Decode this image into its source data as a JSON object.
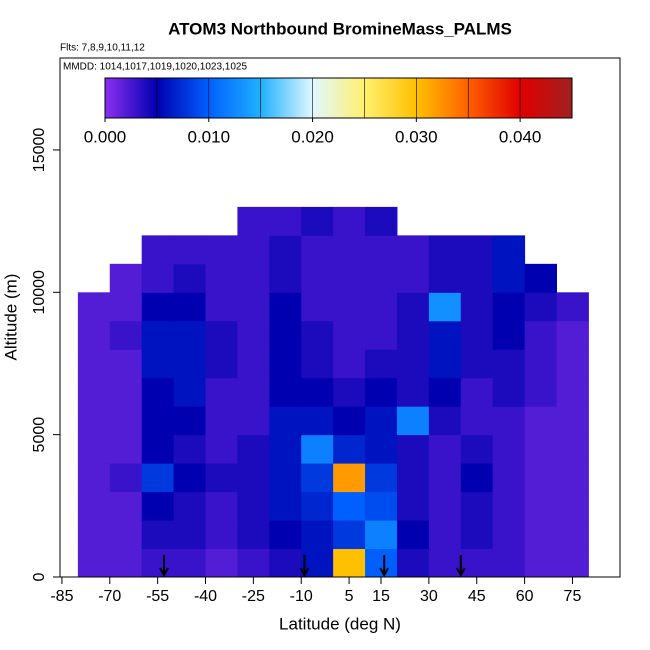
{
  "chart_data": {
    "type": "heatmap",
    "title": "ATOM3 Northbound BromineMass_PALMS",
    "subtitle": "Flts: 7,8,9,10,11,12",
    "annotation": "MMDD: 1014,1017,1019,1020,1023,1025",
    "x_label": "Latitude (deg N)",
    "y_label": "Altitude (m)",
    "xlim": [
      -85.6,
      89.9
    ],
    "ylim": [
      0,
      18230
    ],
    "xticks": [
      -85,
      -70,
      -55,
      -40,
      -25,
      -10,
      5,
      15,
      30,
      45,
      60,
      75
    ],
    "yticks": [
      0,
      5000,
      10000,
      15000
    ],
    "x_edges": [
      -80,
      -70,
      -60,
      -50,
      -40,
      -30,
      -20,
      -10,
      0,
      10,
      20,
      30,
      40,
      50,
      60,
      70,
      80
    ],
    "y_edges": [
      0,
      1000,
      2000,
      3000,
      4000,
      5000,
      6000,
      7000,
      8000,
      9000,
      10000,
      11000,
      12000,
      13000
    ],
    "values": [
      [
        0.002,
        0.002,
        0.003,
        0.003,
        0.002,
        0.003,
        0.004,
        0.006,
        0.03,
        0.01,
        0.004,
        0.003,
        0.003,
        0.003,
        0.002,
        0.002
      ],
      [
        0.002,
        0.002,
        0.004,
        0.004,
        0.003,
        0.004,
        0.005,
        0.006,
        0.008,
        0.012,
        0.005,
        0.003,
        0.004,
        0.003,
        0.002,
        0.002
      ],
      [
        0.002,
        0.002,
        0.005,
        0.004,
        0.003,
        0.004,
        0.006,
        0.007,
        0.01,
        0.009,
        0.004,
        0.003,
        0.004,
        0.003,
        0.002,
        0.002
      ],
      [
        0.002,
        0.003,
        0.008,
        0.005,
        0.004,
        0.004,
        0.006,
        0.008,
        0.032,
        0.008,
        0.004,
        0.003,
        0.005,
        0.003,
        0.002,
        0.002
      ],
      [
        0.002,
        0.002,
        0.005,
        0.004,
        0.003,
        0.004,
        0.006,
        0.012,
        0.007,
        0.006,
        0.004,
        0.003,
        0.004,
        0.003,
        0.002,
        0.002
      ],
      [
        0.002,
        0.002,
        0.005,
        0.005,
        0.003,
        0.003,
        0.006,
        0.006,
        0.005,
        0.006,
        0.012,
        0.004,
        0.003,
        0.003,
        0.002,
        0.002
      ],
      [
        0.002,
        0.002,
        0.005,
        0.006,
        0.003,
        0.003,
        0.005,
        0.005,
        0.004,
        0.005,
        0.004,
        0.005,
        0.003,
        0.004,
        0.003,
        0.002
      ],
      [
        0.002,
        0.002,
        0.006,
        0.006,
        0.004,
        0.003,
        0.005,
        0.004,
        0.003,
        0.004,
        0.004,
        0.006,
        0.004,
        0.004,
        0.003,
        0.002
      ],
      [
        0.002,
        0.003,
        0.006,
        0.006,
        0.004,
        0.003,
        0.005,
        0.004,
        0.003,
        0.003,
        0.004,
        0.006,
        0.004,
        0.005,
        0.003,
        0.002
      ],
      [
        0.002,
        0.002,
        0.005,
        0.005,
        0.003,
        0.003,
        0.005,
        0.003,
        0.003,
        0.003,
        0.004,
        0.013,
        0.004,
        0.005,
        0.004,
        0.003
      ],
      [
        null,
        0.002,
        0.003,
        0.004,
        0.003,
        0.003,
        0.004,
        0.003,
        0.003,
        0.003,
        0.003,
        0.004,
        0.004,
        0.006,
        0.005,
        null
      ],
      [
        null,
        null,
        0.003,
        0.003,
        0.003,
        0.003,
        0.004,
        0.003,
        0.003,
        0.003,
        0.003,
        0.004,
        0.004,
        0.006,
        null,
        null
      ],
      [
        null,
        null,
        null,
        null,
        null,
        0.003,
        0.003,
        0.004,
        0.003,
        0.004,
        null,
        null,
        null,
        null,
        null,
        null
      ]
    ],
    "zlim": [
      0,
      0.045
    ],
    "colorscale": [
      "#8b30f0",
      "#0000b0",
      "#0060ff",
      "#20b0ff",
      "#e0f8ff",
      "#fff070",
      "#ffc000",
      "#ff6000",
      "#e00000",
      "#a02020"
    ],
    "colorbar_ticks": [
      {
        "value": 0,
        "label": "0.000"
      },
      {
        "value": 0.01,
        "label": "0.010"
      },
      {
        "value": 0.02,
        "label": "0.020"
      },
      {
        "value": 0.03,
        "label": "0.030"
      },
      {
        "value": 0.04,
        "label": "0.040"
      }
    ],
    "markers_x": [
      -53,
      -9,
      16,
      40
    ]
  }
}
